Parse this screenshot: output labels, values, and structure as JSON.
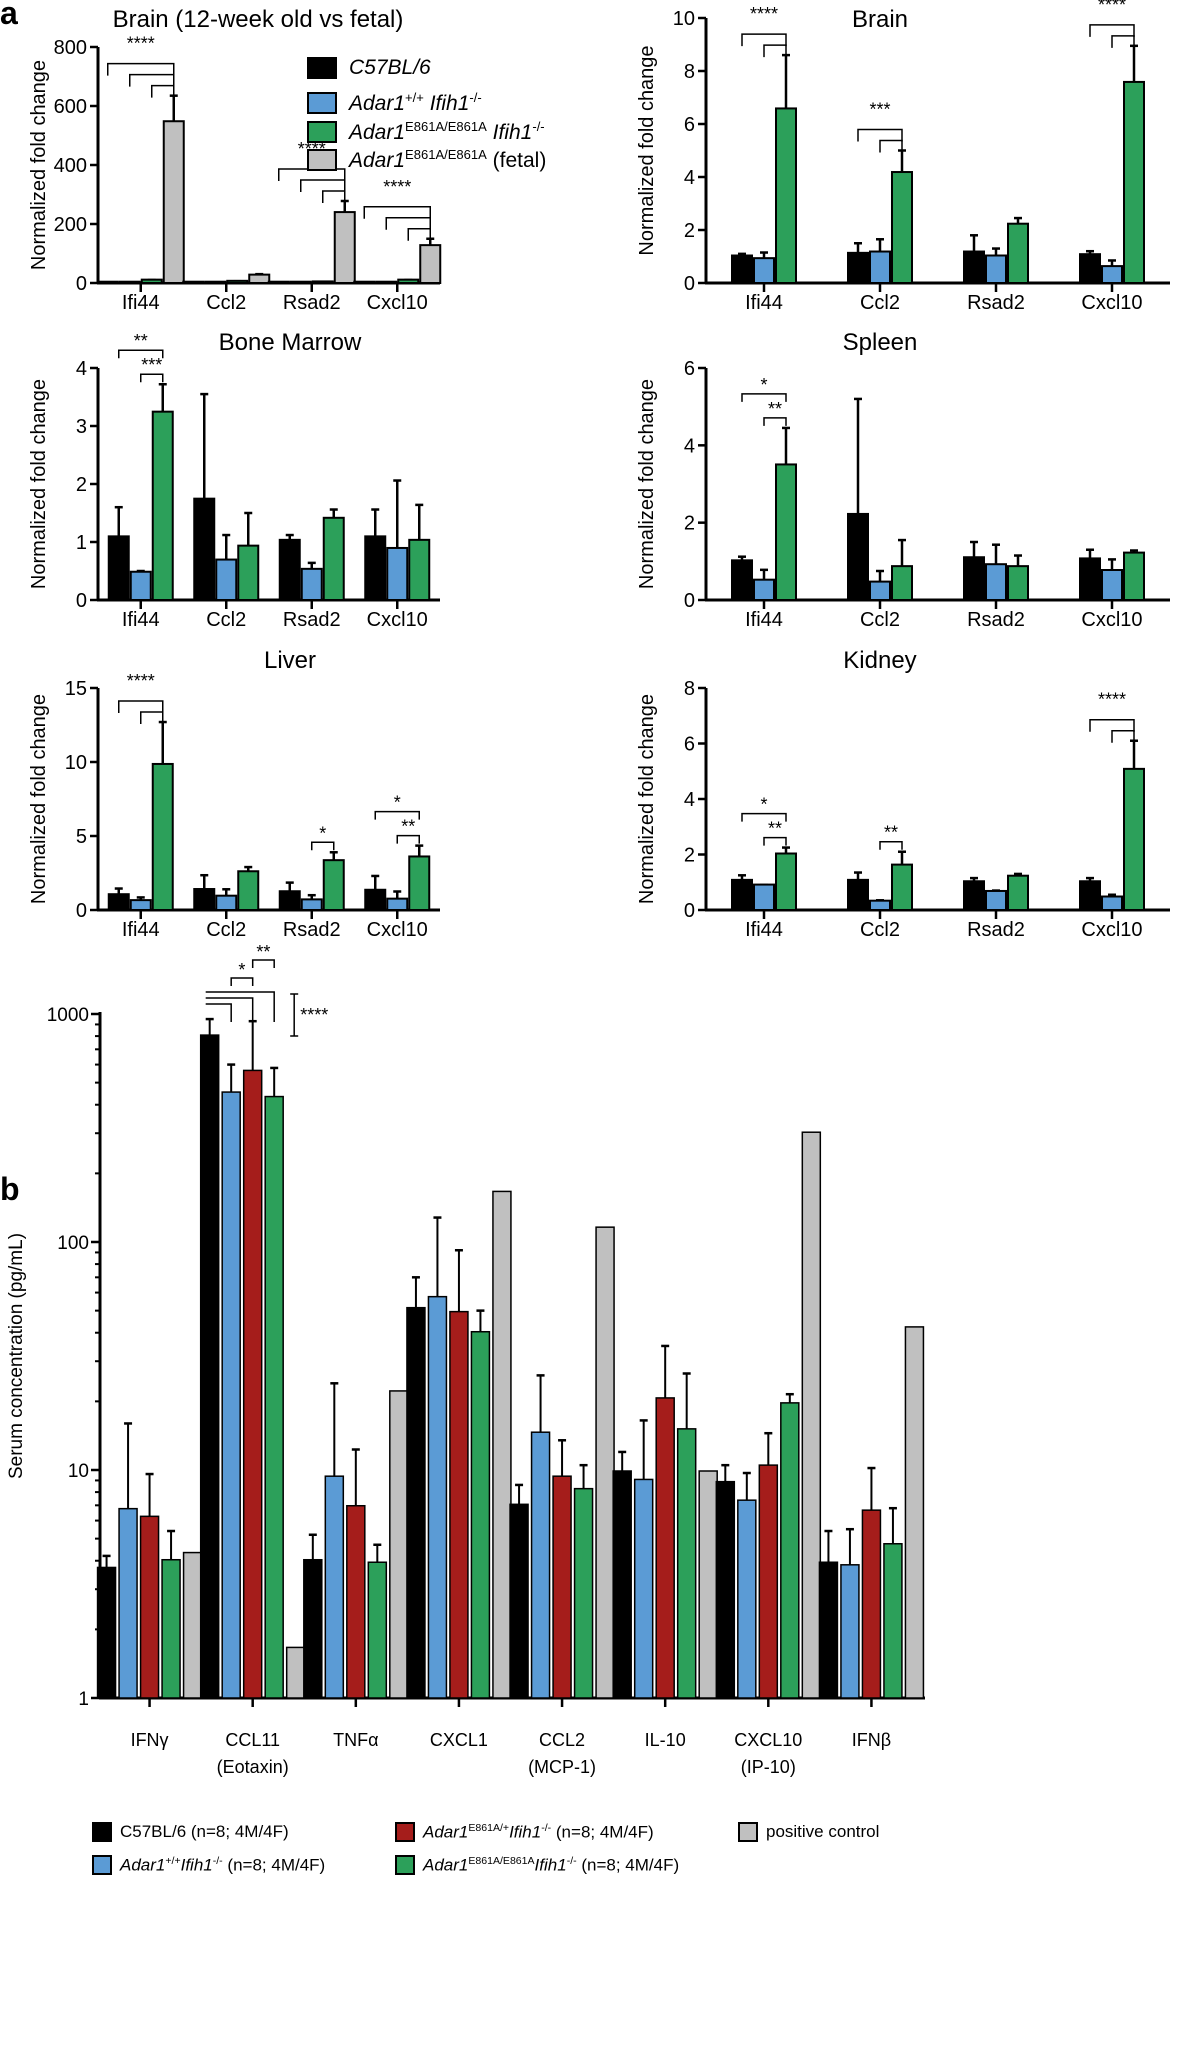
{
  "panel_labels": {
    "a": "a",
    "b": "b"
  },
  "colors": {
    "black": "#000000",
    "blue": "#5b9bd5",
    "green": "#2ca05a",
    "gray": "#c0c0c0",
    "red": "#a51d1b"
  },
  "legend_a": [
    {
      "gene": "C57BL/6",
      "sup1": "",
      "gene2": "",
      "sup2": "",
      "rest": "",
      "color": "black"
    },
    {
      "gene": "Adar1",
      "sup1": "+/+",
      "gene2": " Ifih1",
      "sup2": "-/-",
      "rest": "",
      "color": "blue"
    },
    {
      "gene": "Adar1",
      "sup1": "E861A/E861A",
      "gene2": " Ifih1",
      "sup2": "-/-",
      "rest": "",
      "color": "green"
    },
    {
      "gene": "Adar1",
      "sup1": "E861A/E861A",
      "gene2": "",
      "sup2": "",
      "rest": " (fetal)",
      "color": "gray"
    }
  ],
  "legend_b": [
    {
      "gene": "",
      "sup1": "",
      "gene2": "",
      "sup2": "",
      "rest": "C57BL/6 (n=8; 4M/4F)",
      "color": "black"
    },
    {
      "gene": "Adar1",
      "sup1": "E861A/+",
      "gene2": "Ifih1",
      "sup2": "-/-",
      "rest": " (n=8; 4M/4F)",
      "color": "red"
    },
    {
      "gene": "",
      "sup1": "",
      "gene2": "",
      "sup2": "",
      "rest": "positive control",
      "color": "gray"
    },
    {
      "gene": "Adar1",
      "sup1": "+/+",
      "gene2": "Ifih1",
      "sup2": "-/-",
      "rest": " (n=8; 4M/4F)",
      "color": "blue"
    },
    {
      "gene": "Adar1",
      "sup1": "E861A/E861A",
      "gene2": "Ifih1",
      "sup2": "-/-",
      "rest": " (n=8; 4M/4F)",
      "color": "green"
    }
  ],
  "chart_data": [
    {
      "type": "bar",
      "title": "Brain (12-week old vs fetal)",
      "ylabel": "Normalized fold change",
      "ylim": [
        0,
        800
      ],
      "yticks": [
        0,
        200,
        400,
        600,
        800
      ],
      "categories": [
        "Ifi44",
        "Ccl2",
        "Rsad2",
        "Cxcl10"
      ],
      "colors": [
        "black",
        "blue",
        "green",
        "gray"
      ],
      "series": [
        {
          "name": "C57BL/6",
          "values": [
            1,
            1,
            1,
            1
          ],
          "err": [
            2,
            2,
            2,
            2
          ]
        },
        {
          "name": "Adar1+/+ Ifih1-/-",
          "values": [
            1,
            1,
            1,
            1
          ],
          "err": [
            2,
            2,
            2,
            2
          ]
        },
        {
          "name": "Adar1E861A/E861A Ifih1-/-",
          "values": [
            8,
            4,
            2,
            8
          ],
          "err": [
            10,
            6,
            4,
            10
          ]
        },
        {
          "name": "Adar1E861A/E861A (fetal)",
          "values": [
            545,
            25,
            237,
            125
          ],
          "err": [
            635,
            30,
            278,
            150
          ]
        }
      ],
      "significance": [
        {
          "category": 0,
          "from": [
            0,
            1,
            2
          ],
          "to": 3,
          "label": "****"
        },
        {
          "category": 2,
          "from": [
            0,
            1,
            2
          ],
          "to": 3,
          "label": "****"
        },
        {
          "category": 3,
          "from": [
            0,
            1,
            2
          ],
          "to": 3,
          "label": "****"
        }
      ]
    },
    {
      "type": "bar",
      "title": "Brain",
      "ylabel": "Normalized fold change",
      "ylim": [
        0,
        10
      ],
      "yticks": [
        0,
        2,
        4,
        6,
        8,
        10
      ],
      "categories": [
        "Ifi44",
        "Ccl2",
        "Rsad2",
        "Cxcl10"
      ],
      "colors": [
        "black",
        "blue",
        "green"
      ],
      "series": [
        {
          "name": "C57BL/6",
          "values": [
            1.0,
            1.1,
            1.15,
            1.05
          ],
          "err": [
            1.1,
            1.5,
            1.8,
            1.2
          ]
        },
        {
          "name": "Adar1+/+ Ifih1-/-",
          "values": [
            0.9,
            1.15,
            1.0,
            0.6
          ],
          "err": [
            1.15,
            1.65,
            1.3,
            0.85
          ]
        },
        {
          "name": "Adar1E861A/E861A Ifih1-/-",
          "values": [
            6.55,
            4.15,
            2.2,
            7.55
          ],
          "err": [
            8.6,
            5.0,
            2.45,
            8.95
          ]
        }
      ],
      "significance": [
        {
          "category": 0,
          "from": [
            0,
            1
          ],
          "to": 2,
          "label": "****"
        },
        {
          "category": 1,
          "from": [
            0,
            1
          ],
          "to": 2,
          "label": "***"
        },
        {
          "category": 3,
          "from": [
            0,
            1
          ],
          "to": 2,
          "label": "****"
        }
      ]
    },
    {
      "type": "bar",
      "title": "Bone Marrow",
      "ylabel": "Normalized fold change",
      "ylim": [
        0,
        4
      ],
      "yticks": [
        0,
        1,
        2,
        3,
        4
      ],
      "categories": [
        "Ifi44",
        "Ccl2",
        "Rsad2",
        "Cxcl10"
      ],
      "colors": [
        "black",
        "blue",
        "green"
      ],
      "series": [
        {
          "name": "C57BL/6",
          "values": [
            1.08,
            1.73,
            1.02,
            1.08
          ],
          "err": [
            1.6,
            3.55,
            1.12,
            1.56
          ]
        },
        {
          "name": "Adar1+/+ Ifih1-/-",
          "values": [
            0.47,
            0.68,
            0.52,
            0.88
          ],
          "err": [
            0.5,
            1.12,
            0.64,
            2.06
          ]
        },
        {
          "name": "Adar1E861A/E861A Ifih1-/-",
          "values": [
            3.23,
            0.92,
            1.4,
            1.02
          ],
          "err": [
            3.72,
            1.5,
            1.56,
            1.64
          ]
        }
      ],
      "significance": [
        {
          "category": 0,
          "from": [
            0
          ],
          "to": 2,
          "label": "**",
          "sep": true
        },
        {
          "category": 0,
          "from": [
            1
          ],
          "to": 2,
          "label": "***",
          "sep": true
        }
      ]
    },
    {
      "type": "bar",
      "title": "Spleen",
      "ylabel": "Normalized fold change",
      "ylim": [
        0,
        6
      ],
      "yticks": [
        0,
        2,
        4,
        6
      ],
      "categories": [
        "Ifi44",
        "Ccl2",
        "Rsad2",
        "Cxcl10"
      ],
      "colors": [
        "black",
        "blue",
        "green"
      ],
      "series": [
        {
          "name": "C57BL/6",
          "values": [
            1.0,
            2.2,
            1.08,
            1.05
          ],
          "err": [
            1.12,
            5.2,
            1.5,
            1.3
          ]
        },
        {
          "name": "Adar1+/+ Ifih1-/-",
          "values": [
            0.5,
            0.45,
            0.9,
            0.75
          ],
          "err": [
            0.78,
            0.75,
            1.43,
            1.05
          ]
        },
        {
          "name": "Adar1E861A/E861A Ifih1-/-",
          "values": [
            3.48,
            0.85,
            0.85,
            1.2
          ],
          "err": [
            4.45,
            1.55,
            1.15,
            1.28
          ]
        }
      ],
      "significance": [
        {
          "category": 0,
          "from": [
            0
          ],
          "to": 2,
          "label": "*",
          "sep": true
        },
        {
          "category": 0,
          "from": [
            1
          ],
          "to": 2,
          "label": "**",
          "sep": true
        }
      ]
    },
    {
      "type": "bar",
      "title": "Liver",
      "ylabel": "Normalized fold change",
      "ylim": [
        0,
        15
      ],
      "yticks": [
        0,
        5,
        10,
        15
      ],
      "categories": [
        "Ifi44",
        "Ccl2",
        "Rsad2",
        "Cxcl10"
      ],
      "colors": [
        "black",
        "blue",
        "green"
      ],
      "series": [
        {
          "name": "C57BL/6",
          "values": [
            1.0,
            1.35,
            1.2,
            1.3
          ],
          "err": [
            1.45,
            2.35,
            1.85,
            2.3
          ]
        },
        {
          "name": "Adar1+/+ Ifih1-/-",
          "values": [
            0.6,
            0.9,
            0.65,
            0.7
          ],
          "err": [
            0.85,
            1.4,
            1.0,
            1.25
          ]
        },
        {
          "name": "Adar1E861A/E861A Ifih1-/-",
          "values": [
            9.8,
            2.55,
            3.3,
            3.55
          ],
          "err": [
            12.7,
            2.9,
            3.9,
            4.35
          ]
        }
      ],
      "significance": [
        {
          "category": 0,
          "from": [
            0,
            1
          ],
          "to": 2,
          "label": "****"
        },
        {
          "category": 2,
          "from": [
            1
          ],
          "to": 2,
          "label": "*",
          "sep": true
        },
        {
          "category": 3,
          "from": [
            0
          ],
          "to": 2,
          "label": "*",
          "sep": true
        },
        {
          "category": 3,
          "from": [
            1
          ],
          "to": 2,
          "label": "**",
          "sep": true
        }
      ]
    },
    {
      "type": "bar",
      "title": "Kidney",
      "ylabel": "Normalized fold change",
      "ylim": [
        0,
        8
      ],
      "yticks": [
        0,
        2,
        4,
        6,
        8
      ],
      "categories": [
        "Ifi44",
        "Ccl2",
        "Rsad2",
        "Cxcl10"
      ],
      "colors": [
        "black",
        "blue",
        "green"
      ],
      "series": [
        {
          "name": "C57BL/6",
          "values": [
            1.05,
            1.05,
            1.0,
            1.0
          ],
          "err": [
            1.25,
            1.35,
            1.15,
            1.15
          ]
        },
        {
          "name": "Adar1+/+ Ifih1-/-",
          "values": [
            0.88,
            0.3,
            0.65,
            0.45
          ],
          "err": [
            0.9,
            0.35,
            0.7,
            0.55
          ]
        },
        {
          "name": "Adar1E861A/E861A Ifih1-/-",
          "values": [
            2.0,
            1.6,
            1.2,
            5.05
          ],
          "err": [
            2.25,
            2.1,
            1.3,
            6.1
          ]
        }
      ],
      "significance": [
        {
          "category": 0,
          "from": [
            0
          ],
          "to": 2,
          "label": "*",
          "sep": true
        },
        {
          "category": 0,
          "from": [
            1
          ],
          "to": 2,
          "label": "**",
          "sep": true
        },
        {
          "category": 1,
          "from": [
            1
          ],
          "to": 2,
          "label": "**",
          "sep": true
        },
        {
          "category": 3,
          "from": [
            0,
            1
          ],
          "to": 2,
          "label": "****"
        }
      ]
    },
    {
      "type": "bar",
      "scale": "log",
      "title": "",
      "ylabel": "Serum concentration (pg/mL)",
      "ylim": [
        1,
        1000
      ],
      "yticks": [
        1,
        10,
        100,
        1000
      ],
      "categories": [
        "IFNγ",
        "CCL11",
        "TNFα",
        "CXCL1",
        "CCL2",
        "IL-10",
        "CXCL10",
        "IFNβ"
      ],
      "category_sublabels": [
        "",
        "(Eotaxin)",
        "",
        "",
        "(MCP-1)",
        "",
        "(IP-10)",
        ""
      ],
      "colors": [
        "black",
        "blue",
        "red",
        "green",
        "gray"
      ],
      "series": [
        {
          "name": "C57BL/6 (n=8; 4M/4F)",
          "values": [
            3.7,
            800,
            4.0,
            51,
            7.0,
            9.8,
            8.8,
            3.9
          ],
          "err": [
            4.2,
            950,
            5.2,
            70,
            8.6,
            12,
            10.5,
            5.4
          ]
        },
        {
          "name": "Adar1+/+Ifih1-/- (n=8; 4M/4F)",
          "values": [
            6.7,
            450,
            9.3,
            57,
            14.5,
            9.0,
            7.3,
            3.8
          ],
          "err": [
            16,
            600,
            24,
            128,
            26,
            16.5,
            9.7,
            5.5
          ]
        },
        {
          "name": "Adar1E861A/+Ifih1-/- (n=8; 4M/4F)",
          "values": [
            6.2,
            560,
            6.9,
            49,
            9.3,
            20.5,
            10.4,
            6.6
          ],
          "err": [
            9.6,
            930,
            12.3,
            92,
            13.5,
            35,
            14.5,
            10.2
          ]
        },
        {
          "name": "Adar1E861A/E861AIfih1-/- (n=8; 4M/4F)",
          "values": [
            4.0,
            430,
            3.9,
            40,
            8.2,
            15,
            19.5,
            4.7
          ],
          "err": [
            5.4,
            580,
            4.7,
            50,
            10.5,
            26.5,
            21.5,
            6.8
          ]
        },
        {
          "name": "positive control",
          "values": [
            4.3,
            1.65,
            22,
            165,
            115,
            9.8,
            300,
            42
          ],
          "err": [
            null,
            null,
            null,
            null,
            null,
            null,
            null,
            null
          ]
        }
      ],
      "significance": [
        {
          "category": 1,
          "from": [
            0
          ],
          "to": [
            1,
            2,
            3
          ],
          "label": "****"
        },
        {
          "category": 1,
          "from": [
            1
          ],
          "to": 2,
          "label": "*"
        },
        {
          "category": 1,
          "from": [
            2
          ],
          "to": 3,
          "label": "**"
        }
      ]
    }
  ]
}
